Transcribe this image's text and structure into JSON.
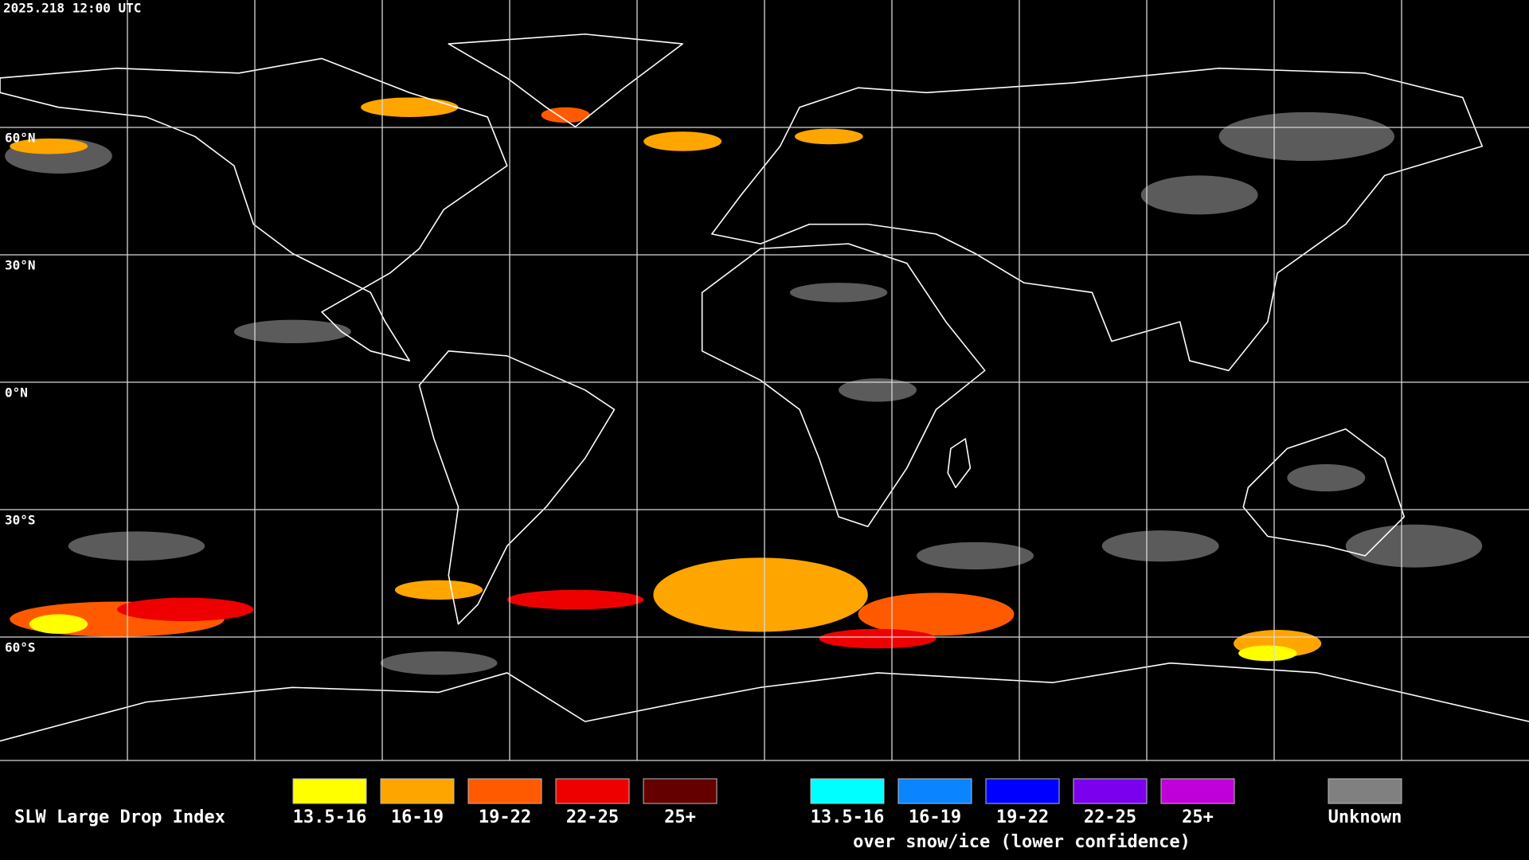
{
  "header": {
    "timestamp": "2025.218 12:00 UTC"
  },
  "map": {
    "latitude_labels": [
      "60°N",
      "30°N",
      "0°N",
      "30°S",
      "60°S"
    ]
  },
  "legend": {
    "title": "SLW Large Drop Index",
    "items": [
      {
        "label": "13.5-16",
        "color": "#ffff00"
      },
      {
        "label": "16-19",
        "color": "#ffa500"
      },
      {
        "label": "19-22",
        "color": "#ff5a00"
      },
      {
        "label": "22-25",
        "color": "#ee0000"
      },
      {
        "label": "25+",
        "color": "#640000"
      }
    ],
    "snow_ice_items": [
      {
        "label": "13.5-16",
        "color": "#00ffff"
      },
      {
        "label": "16-19",
        "color": "#0a84ff"
      },
      {
        "label": "19-22",
        "color": "#0000ff"
      },
      {
        "label": "22-25",
        "color": "#7a00ee"
      },
      {
        "label": "25+",
        "color": "#c000d8"
      }
    ],
    "snow_ice_note": "over snow/ice (lower confidence)",
    "unknown": {
      "label": "Unknown",
      "color": "#808080"
    }
  }
}
